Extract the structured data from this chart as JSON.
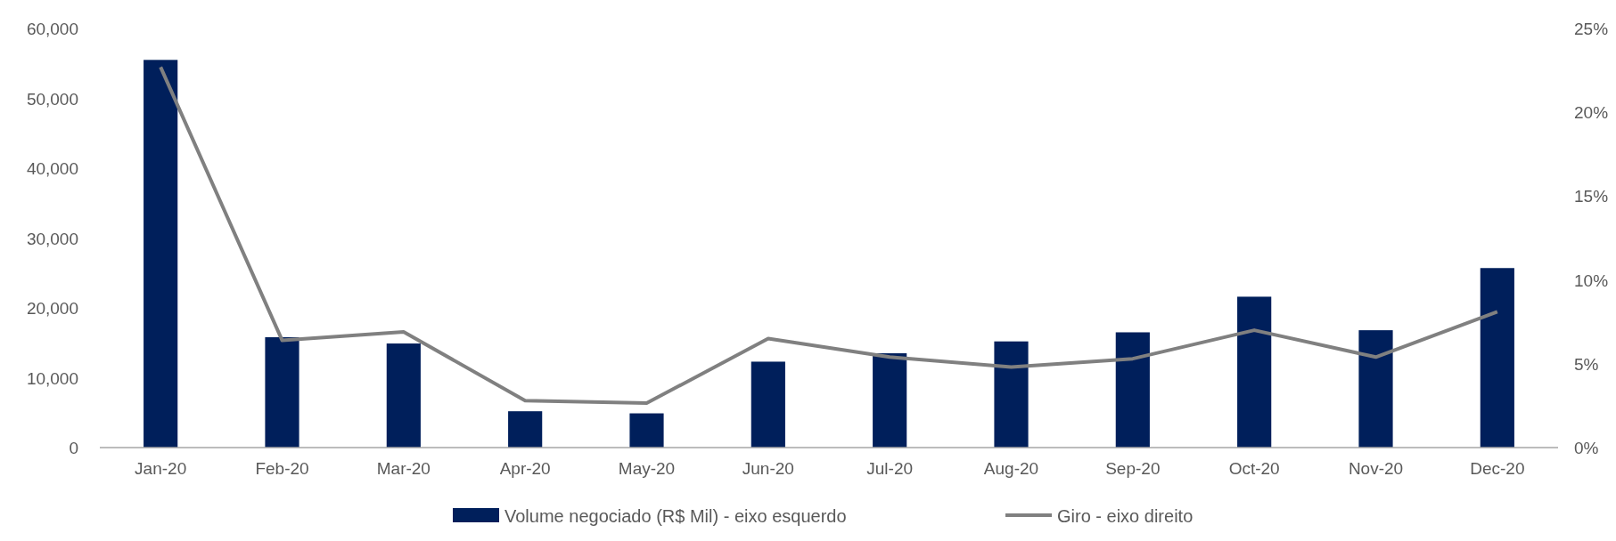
{
  "chart_data": {
    "type": "bar",
    "categories": [
      "Jan-20",
      "Feb-20",
      "Mar-20",
      "Apr-20",
      "May-20",
      "Jun-20",
      "Jul-20",
      "Aug-20",
      "Sep-20",
      "Oct-20",
      "Nov-20",
      "Dec-20"
    ],
    "series": [
      {
        "name": "Volume negociado (R$ Mil) - eixo esquerdo",
        "color": "#001f5b",
        "values": [
          55500,
          15800,
          14900,
          5200,
          4900,
          12300,
          13500,
          15200,
          16500,
          21600,
          16800,
          25700
        ]
      },
      {
        "name": "Giro - eixo direito",
        "type": "line",
        "axis": "y2",
        "color": "#808080",
        "values": [
          22.7,
          6.4,
          6.9,
          2.8,
          2.65,
          6.5,
          5.4,
          4.8,
          5.3,
          7.0,
          5.4,
          8.1
        ]
      }
    ],
    "ylim": [
      0,
      60000
    ],
    "yticks": [
      0,
      {
        "value": 10000,
        "label": "10,000"
      },
      {
        "value": 20000,
        "label": "20,000"
      },
      {
        "value": 30000,
        "label": "30,000"
      },
      {
        "value": 40000,
        "label": "40,000"
      },
      {
        "value": 50000,
        "label": "50,000"
      },
      {
        "value": 60000,
        "label": "60,000"
      }
    ],
    "y2lim": [
      0,
      25
    ],
    "y2ticks": [
      {
        "value": 0,
        "label": "0%"
      },
      {
        "value": 5,
        "label": "5%"
      },
      {
        "value": 10,
        "label": "10%"
      },
      {
        "value": 15,
        "label": "15%"
      },
      {
        "value": 20,
        "label": "20%"
      },
      {
        "value": 25,
        "label": "25%"
      }
    ],
    "grid": false,
    "legend": "bottom",
    "marker": "none",
    "line_style": "solid"
  }
}
